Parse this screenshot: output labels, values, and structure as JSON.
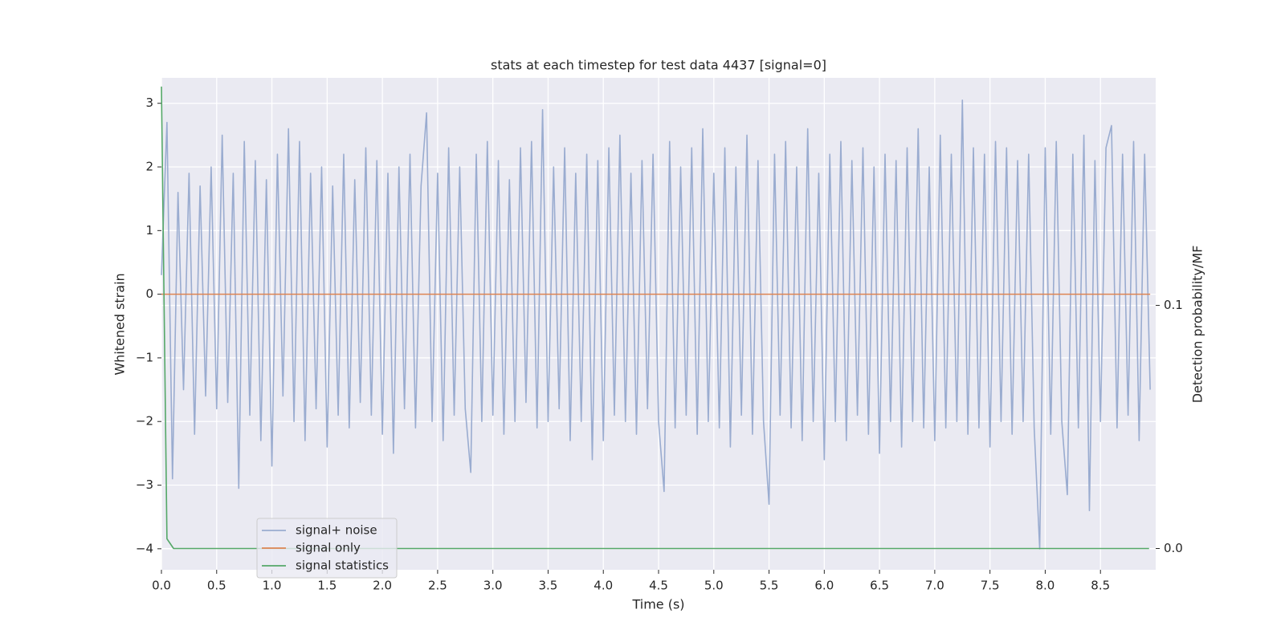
{
  "chart_data": {
    "type": "line",
    "title": "stats at each timestep for test data 4437 [signal=0]",
    "xlabel": "Time (s)",
    "ylabel": "Whitened strain",
    "y2label": "Detection probability/MF",
    "xlim": [
      0,
      9.0
    ],
    "ylim": [
      -4.33,
      3.4
    ],
    "y2lim": [
      -0.00875,
      0.1936
    ],
    "xticks": [
      {
        "value": 0,
        "label": "0.0"
      },
      0.5,
      {
        "value": 1,
        "label": "1.0"
      },
      1.5,
      {
        "value": 2,
        "label": "2.0"
      },
      2.5,
      {
        "value": 3,
        "label": "3.0"
      },
      3.5,
      {
        "value": 4,
        "label": "4.0"
      },
      4.5,
      {
        "value": 5,
        "label": "5.0"
      },
      5.5,
      {
        "value": 6,
        "label": "6.0"
      },
      6.5,
      {
        "value": 7,
        "label": "7.0"
      },
      7.5,
      {
        "value": 8,
        "label": "8.0"
      },
      8.5
    ],
    "yticks": [
      {
        "value": -4,
        "label": "−4"
      },
      {
        "value": -3,
        "label": "−3"
      },
      {
        "value": -2,
        "label": "−2"
      },
      {
        "value": -1,
        "label": "−1"
      },
      0,
      1,
      2,
      3
    ],
    "y2ticks": [
      {
        "value": 0,
        "label": "0.0"
      },
      0.1
    ],
    "grid": true,
    "legend": "lower left",
    "series": [
      {
        "name": "signal+ noise",
        "color": "#9aacd0",
        "x": [
          0,
          0.05,
          0.1,
          0.15,
          0.2,
          0.25,
          0.3,
          0.35,
          0.4,
          0.45,
          0.5,
          0.55,
          0.6,
          0.65,
          0.7,
          0.75,
          0.8,
          0.85,
          0.9,
          0.95,
          1.0,
          1.05,
          1.1,
          1.15,
          1.2,
          1.25,
          1.3,
          1.35,
          1.4,
          1.45,
          1.5,
          1.55,
          1.6,
          1.65,
          1.7,
          1.75,
          1.8,
          1.85,
          1.9,
          1.95,
          2.0,
          2.05,
          2.1,
          2.15,
          2.2,
          2.25,
          2.3,
          2.35,
          2.4,
          2.45,
          2.5,
          2.55,
          2.6,
          2.65,
          2.7,
          2.75,
          2.8,
          2.85,
          2.9,
          2.95,
          3.0,
          3.05,
          3.1,
          3.15,
          3.2,
          3.25,
          3.3,
          3.35,
          3.4,
          3.45,
          3.5,
          3.55,
          3.6,
          3.65,
          3.7,
          3.75,
          3.8,
          3.85,
          3.9,
          3.95,
          4.0,
          4.05,
          4.1,
          4.15,
          4.2,
          4.25,
          4.3,
          4.35,
          4.4,
          4.45,
          4.5,
          4.55,
          4.6,
          4.65,
          4.7,
          4.75,
          4.8,
          4.85,
          4.9,
          4.95,
          5.0,
          5.05,
          5.1,
          5.15,
          5.2,
          5.25,
          5.3,
          5.35,
          5.4,
          5.45,
          5.5,
          5.55,
          5.6,
          5.65,
          5.7,
          5.75,
          5.8,
          5.85,
          5.9,
          5.95,
          6.0,
          6.05,
          6.1,
          6.15,
          6.2,
          6.25,
          6.3,
          6.35,
          6.4,
          6.45,
          6.5,
          6.55,
          6.6,
          6.65,
          6.7,
          6.75,
          6.8,
          6.85,
          6.9,
          6.95,
          7.0,
          7.05,
          7.1,
          7.15,
          7.2,
          7.25,
          7.3,
          7.35,
          7.4,
          7.45,
          7.5,
          7.55,
          7.6,
          7.65,
          7.7,
          7.75,
          7.8,
          7.85,
          7.9,
          7.95,
          8.0,
          8.05,
          8.1,
          8.15,
          8.2,
          8.25,
          8.3,
          8.35,
          8.4,
          8.45,
          8.5,
          8.55,
          8.6,
          8.65,
          8.7,
          8.75,
          8.8,
          8.85,
          8.9,
          8.95
        ],
        "values": [
          0.3,
          2.7,
          -2.9,
          1.6,
          -1.5,
          1.9,
          -2.2,
          1.7,
          -1.6,
          2.0,
          -1.8,
          2.5,
          -1.7,
          1.9,
          -3.05,
          2.4,
          -1.9,
          2.1,
          -2.3,
          1.8,
          -2.7,
          2.2,
          -1.6,
          2.6,
          -2.0,
          2.4,
          -2.3,
          1.9,
          -1.8,
          2.0,
          -2.4,
          1.7,
          -1.9,
          2.2,
          -2.1,
          1.8,
          -1.7,
          2.3,
          -1.9,
          2.1,
          -2.2,
          1.9,
          -2.5,
          2.0,
          -1.8,
          2.2,
          -2.1,
          1.7,
          2.85,
          -2.0,
          1.9,
          -2.3,
          2.3,
          -1.9,
          2.0,
          -1.8,
          -2.8,
          2.2,
          -2.0,
          2.4,
          -1.9,
          2.1,
          -2.2,
          1.8,
          -2.0,
          2.3,
          -1.7,
          2.4,
          -2.1,
          2.9,
          -2.0,
          2.0,
          -1.8,
          2.3,
          -2.3,
          1.9,
          -2.0,
          2.2,
          -2.6,
          2.1,
          -2.3,
          2.3,
          -1.9,
          2.5,
          -2.0,
          1.9,
          -2.2,
          2.1,
          -1.8,
          2.2,
          -2.0,
          -3.1,
          2.4,
          -2.1,
          2.0,
          -1.9,
          2.3,
          -2.2,
          2.6,
          -2.0,
          1.9,
          -2.1,
          2.3,
          -2.4,
          2.0,
          -1.9,
          2.5,
          -2.2,
          2.1,
          -2.0,
          -3.3,
          2.2,
          -1.9,
          2.4,
          -2.1,
          2.0,
          -2.3,
          2.6,
          -2.0,
          1.9,
          -2.6,
          2.2,
          -2.0,
          2.4,
          -2.3,
          2.1,
          -1.9,
          2.3,
          -2.2,
          2.0,
          -2.5,
          2.2,
          -2.0,
          2.1,
          -2.4,
          2.3,
          -2.0,
          2.6,
          -2.1,
          2.0,
          -2.3,
          2.5,
          -2.1,
          2.2,
          -2.0,
          3.05,
          -2.2,
          2.3,
          -2.1,
          2.2,
          -2.4,
          2.4,
          -2.0,
          2.3,
          -2.2,
          2.1,
          -2.0,
          2.2,
          -2.1,
          -4.0,
          2.3,
          -2.2,
          2.4,
          -2.0,
          -3.15,
          2.2,
          -2.1,
          2.5,
          -3.4,
          2.1,
          -2.0,
          2.3,
          2.65,
          -2.1,
          2.2,
          -1.9,
          2.4,
          -2.3,
          2.2,
          -1.5
        ]
      },
      {
        "name": "signal only",
        "color": "#dd8452",
        "x": [
          0,
          8.95
        ],
        "values": [
          0,
          0
        ]
      },
      {
        "name": "signal statistics",
        "color": "#55a868",
        "axis": "y2",
        "x": [
          0,
          0.05,
          0.11,
          8.94
        ],
        "values": [
          0.19,
          0.004,
          0,
          0
        ]
      }
    ]
  }
}
